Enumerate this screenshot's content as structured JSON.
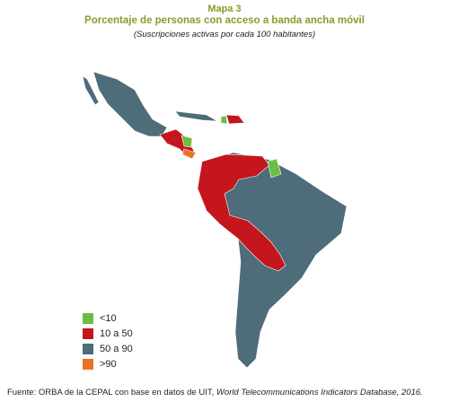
{
  "header": {
    "title": "Mapa 3",
    "subtitle": "Porcentaje de personas con acceso a banda ancha móvil",
    "note": "(Suscripciones activas por cada 100 habitantes)"
  },
  "legend": [
    {
      "label": "<10",
      "color": "#6cbd45"
    },
    {
      "label": "10 a 50",
      "color": "#c4161c"
    },
    {
      "label": "50 a 90",
      "color": "#4e6c7a"
    },
    {
      "label": ">90",
      "color": "#ea7125"
    }
  ],
  "source": {
    "text": "Fuente: ORBA de la CEPAL con base en datos de UIT, ",
    "italic": "World Telecommunications Indicators Database, 2016."
  }
}
